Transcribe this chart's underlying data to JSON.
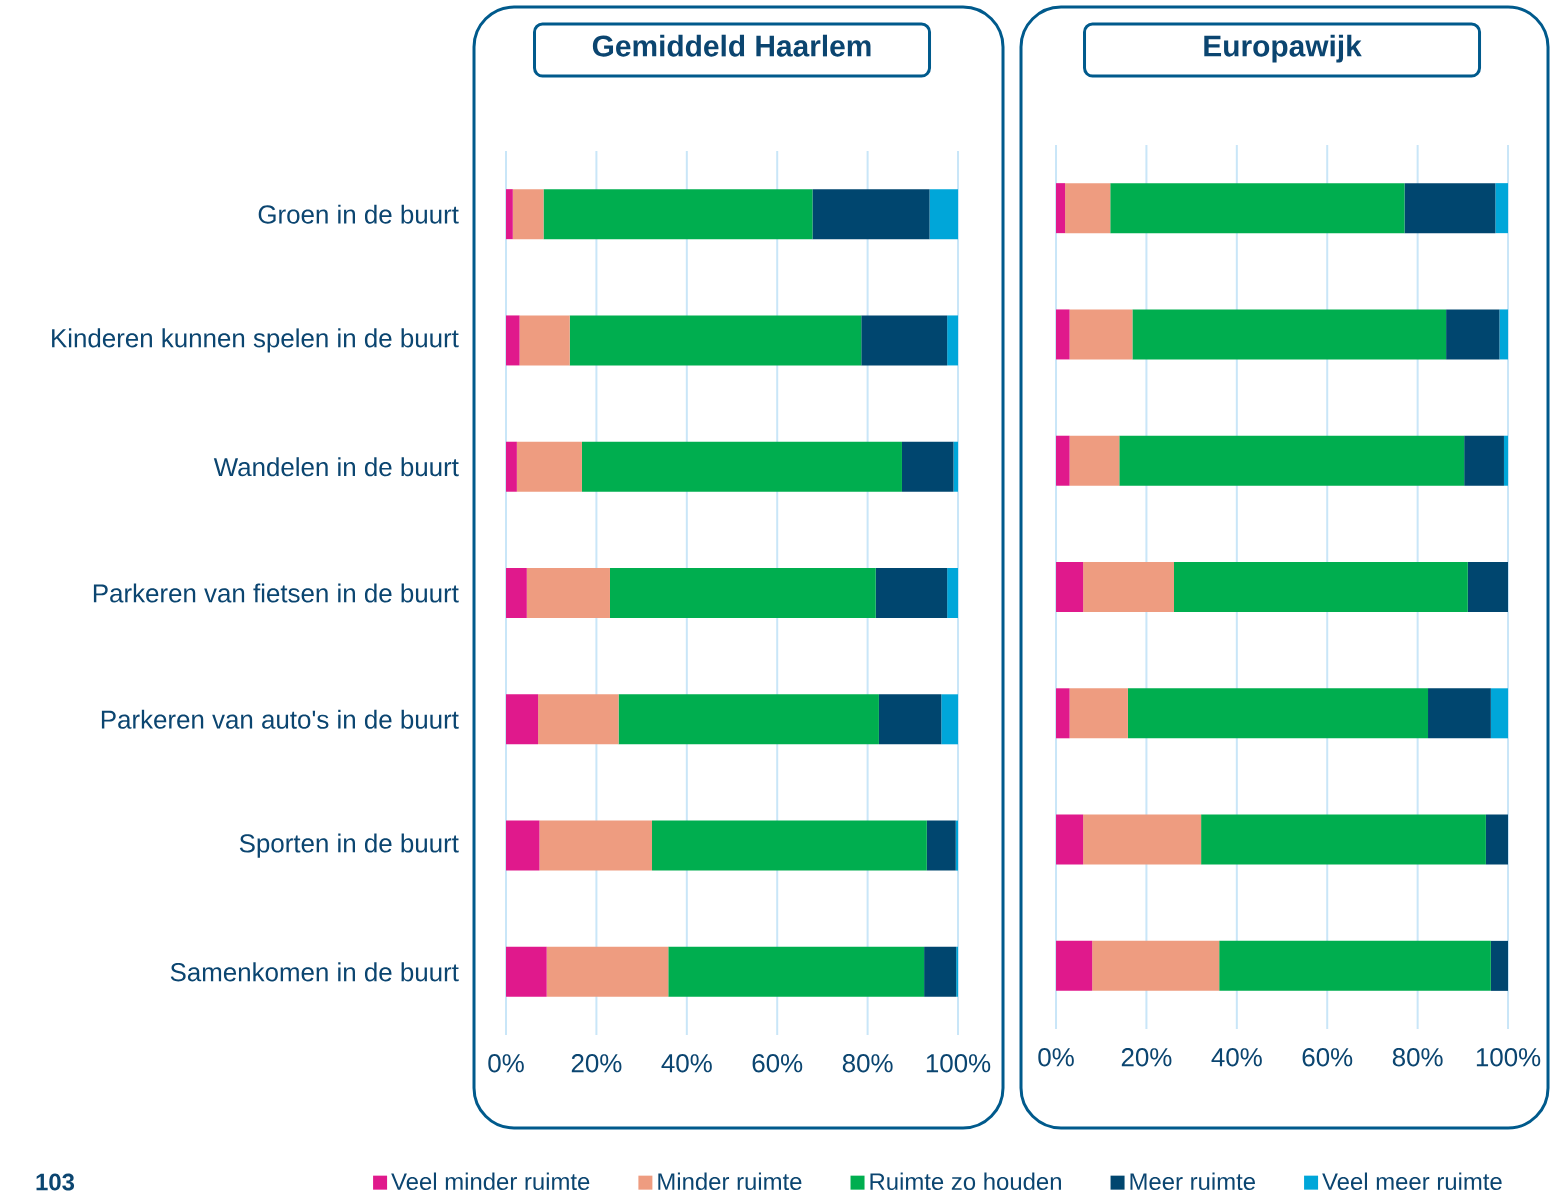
{
  "chart_data": [
    {
      "type": "bar",
      "orientation": "horizontal",
      "stacked": true,
      "title": "Gemiddeld Haarlem",
      "categories": [
        "Groen in de buurt",
        "Kinderen kunnen spelen in de buurt",
        "Wandelen in de buurt",
        "Parkeren van fietsen in de buurt",
        "Parkeren van auto's in de buurt",
        "Sporten in de buurt",
        "Samenkomen in de buurt"
      ],
      "series": [
        {
          "name": "Veel minder ruimte",
          "color": "#e0198c",
          "values": [
            1.5,
            3.0,
            2.4,
            4.6,
            7.1,
            7.4,
            9.0
          ]
        },
        {
          "name": "Minder ruimte",
          "color": "#ee9c80",
          "values": [
            6.8,
            11.1,
            14.4,
            18.4,
            17.8,
            24.9,
            26.9
          ]
        },
        {
          "name": "Ruimte zo houden",
          "color": "#00ae4f",
          "values": [
            59.5,
            64.5,
            70.8,
            58.8,
            57.6,
            60.8,
            56.6
          ]
        },
        {
          "name": "Meer ruimte",
          "color": "#00466f",
          "values": [
            25.9,
            19.0,
            11.4,
            15.8,
            13.8,
            6.4,
            7.1
          ]
        },
        {
          "name": "Veel meer ruimte",
          "color": "#00a6d9",
          "values": [
            6.3,
            2.4,
            1.0,
            2.4,
            3.7,
            0.5,
            0.4
          ]
        }
      ],
      "xlim": [
        0,
        100
      ],
      "xticks": [
        {
          "value": 0,
          "label": "0%"
        },
        {
          "value": 20,
          "label": "20%"
        },
        {
          "value": 40,
          "label": "40%"
        },
        {
          "value": 60,
          "label": "60%"
        },
        {
          "value": 80,
          "label": "80%"
        },
        {
          "value": 100,
          "label": "100%"
        }
      ],
      "grid": "x",
      "legend": "bottom",
      "annotations": [
        "103"
      ]
    },
    {
      "type": "bar",
      "orientation": "horizontal",
      "stacked": true,
      "title": "Europawijk",
      "categories": [
        null,
        null,
        null,
        null,
        null,
        null,
        null
      ],
      "series": [
        {
          "color": "#e0198c",
          "values": [
            2.0,
            3.0,
            3.0,
            6.0,
            3.0,
            6.0,
            8.0
          ]
        },
        {
          "color": "#ee9c80",
          "values": [
            10.0,
            13.9,
            11.0,
            20.1,
            12.9,
            26.1,
            28.1
          ]
        },
        {
          "color": "#00ae4f",
          "values": [
            65.1,
            69.4,
            76.3,
            65.0,
            66.4,
            63.0,
            60.1
          ]
        },
        {
          "color": "#00466f",
          "values": [
            20.1,
            11.8,
            8.8,
            8.9,
            13.9,
            4.9,
            3.8
          ]
        },
        {
          "color": "#00a6d9",
          "values": [
            2.8,
            1.9,
            0.9,
            0.0,
            3.8,
            0.0,
            0.0
          ]
        }
      ],
      "xlim": [
        0,
        100
      ],
      "xticks": [
        {
          "value": 0,
          "label": "0%"
        },
        {
          "value": 20,
          "label": "20%"
        },
        {
          "value": 40,
          "label": "40%"
        },
        {
          "value": 60,
          "label": "60%"
        },
        {
          "value": 80,
          "label": "80%"
        },
        {
          "value": 100,
          "label": "100%"
        }
      ],
      "grid": "x",
      "tick_labels": "x"
    }
  ]
}
